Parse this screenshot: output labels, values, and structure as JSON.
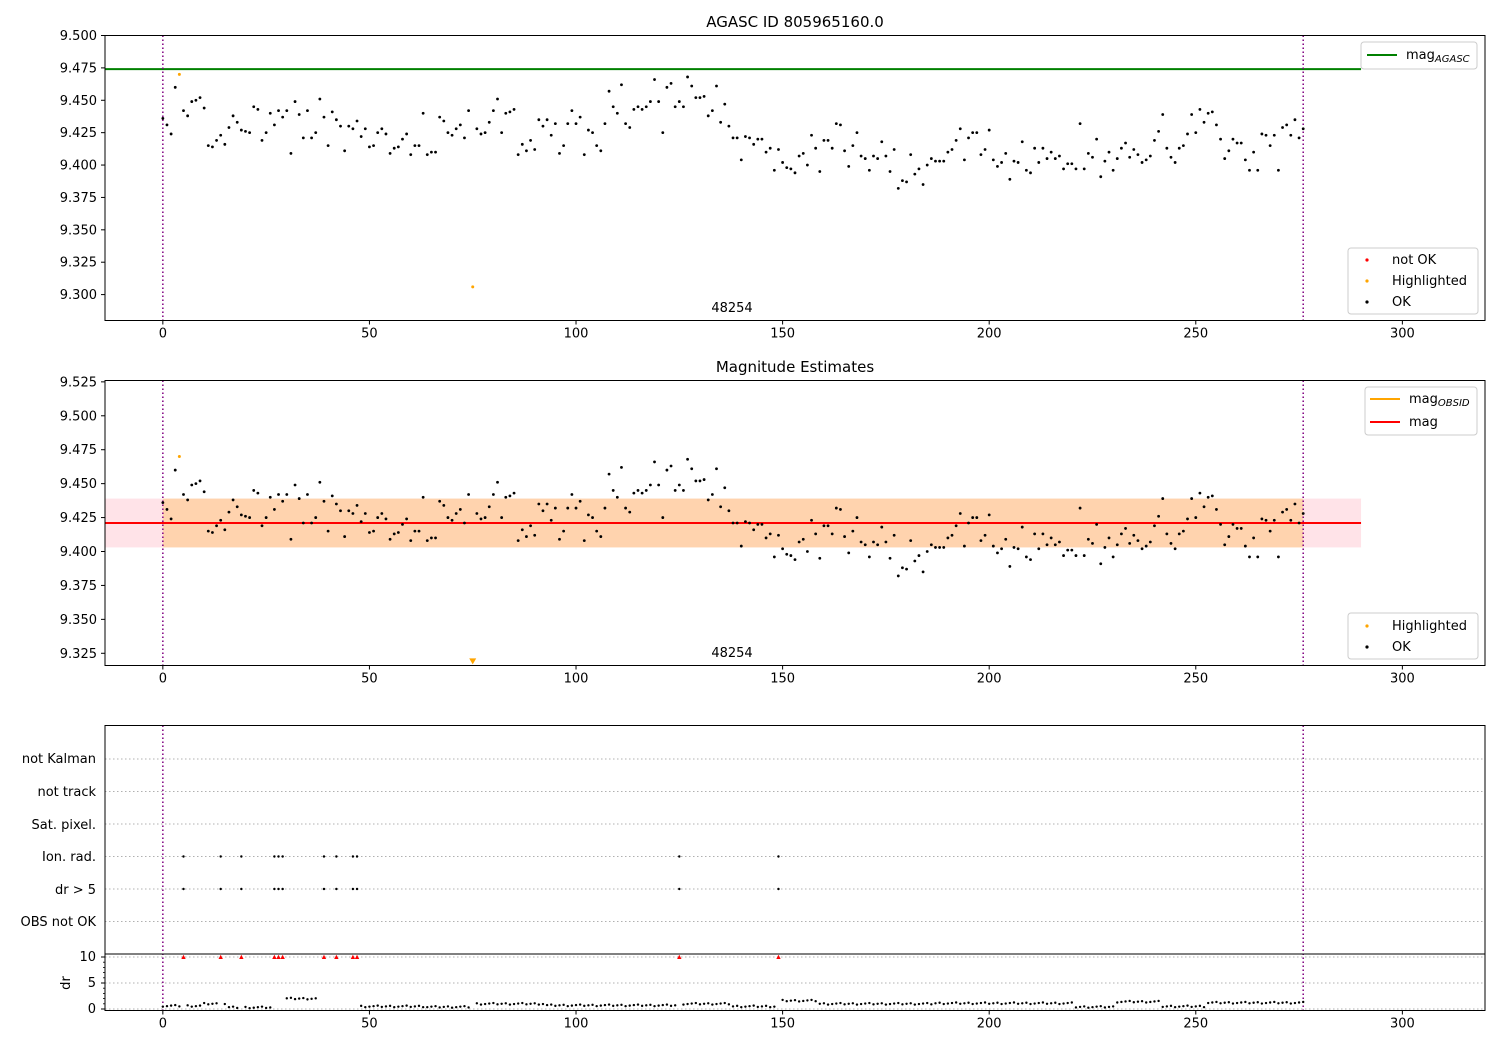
{
  "chart_data": [
    {
      "type": "scatter",
      "title": "AGASC ID 805965160.0",
      "xlim": [
        -14,
        320
      ],
      "ylim": [
        9.28,
        9.5
      ],
      "x_ticks": [
        0,
        50,
        100,
        150,
        200,
        250,
        300
      ],
      "y_ticks": [
        9.3,
        9.325,
        9.35,
        9.375,
        9.4,
        9.425,
        9.45,
        9.475,
        9.5
      ],
      "y_tick_labels": [
        "9.300",
        "9.325",
        "9.350",
        "9.375",
        "9.400",
        "9.425",
        "9.450",
        "9.475",
        "9.500"
      ],
      "grid": false,
      "hlines": [
        {
          "name": "mag",
          "sub": "AGASC",
          "y": 9.474,
          "x_end": 290,
          "color": "#008000"
        }
      ],
      "vlines": [
        0,
        276
      ],
      "obsid_labels": [
        {
          "x": 138,
          "text": "48254"
        }
      ],
      "legend_top": [
        {
          "swatch": "line",
          "color": "#008000",
          "name": "mag",
          "sub": "AGASC"
        }
      ],
      "legend_bottom": [
        {
          "swatch": "dot",
          "color": "#ff0000",
          "name": "not OK"
        },
        {
          "swatch": "dot",
          "color": "#ffa500",
          "name": "Highlighted"
        },
        {
          "swatch": "dot",
          "color": "#000000",
          "name": "OK"
        }
      ],
      "highlighted": [
        {
          "x": 4,
          "y": 9.47
        },
        {
          "x": 75,
          "y": 9.306
        }
      ]
    },
    {
      "type": "scatter",
      "title": "Magnitude Estimates",
      "xlim": [
        -14,
        320
      ],
      "ylim": [
        9.316,
        9.526
      ],
      "x_ticks": [
        0,
        50,
        100,
        150,
        200,
        250,
        300
      ],
      "y_ticks": [
        9.325,
        9.35,
        9.375,
        9.4,
        9.425,
        9.45,
        9.475,
        9.5,
        9.525
      ],
      "y_tick_labels": [
        "9.325",
        "9.350",
        "9.375",
        "9.400",
        "9.425",
        "9.450",
        "9.475",
        "9.500",
        "9.525"
      ],
      "grid": false,
      "band": {
        "x0": -14,
        "x1": 290,
        "y0": 9.403,
        "y1": 9.439
      },
      "band_obsid": {
        "x0": 0,
        "x1": 276,
        "y0": 9.403,
        "y1": 9.439
      },
      "hlines": [
        {
          "name": "mag",
          "y": 9.421,
          "x_end": 290,
          "color": "#ff0000"
        },
        {
          "name": "mag",
          "sub": "OBSID",
          "y": 9.421,
          "x0": 0,
          "x_end": 276,
          "color": "#ffa500"
        }
      ],
      "vlines": [
        0,
        276
      ],
      "obsid_labels": [
        {
          "x": 138,
          "text": "48254"
        }
      ],
      "legend_top": [
        {
          "swatch": "line",
          "color": "#ffa500",
          "name": "mag",
          "sub": "OBSID"
        },
        {
          "swatch": "line",
          "color": "#ff0000",
          "name": "mag"
        }
      ],
      "legend_bottom": [
        {
          "swatch": "dot",
          "color": "#ffa500",
          "name": "Highlighted"
        },
        {
          "swatch": "dot",
          "color": "#000000",
          "name": "OK"
        }
      ],
      "highlighted": [
        {
          "x": 4,
          "y": 9.47
        },
        {
          "x": 75,
          "y": 9.319,
          "marker": "triangle-down"
        }
      ]
    },
    {
      "type": "scatter",
      "title": "",
      "xlim": [
        -14,
        320
      ],
      "x_ticks": [
        0,
        50,
        100,
        150,
        200,
        250,
        300
      ],
      "flag_rows": [
        "not Kalman",
        "not track",
        "Sat. pixel.",
        "Ion. rad.",
        "dr > 5",
        "OBS not OK"
      ],
      "flag_points": {
        "Ion. rad.": [
          5,
          14,
          19,
          27,
          28,
          29,
          39,
          42,
          46,
          47,
          125,
          149
        ],
        "dr > 5": [
          5,
          14,
          19,
          27,
          28,
          29,
          39,
          42,
          46,
          47,
          125,
          149
        ]
      },
      "dr": {
        "ylabel": "dr",
        "ylim": [
          -0.5,
          10.5
        ],
        "y_ticks": [
          0,
          5,
          10
        ],
        "y_tick_labels": [
          "0",
          "5",
          "10"
        ],
        "clipped_at": 10,
        "clipped_x": [
          5,
          14,
          19,
          27,
          28,
          29,
          39,
          42,
          46,
          47,
          125,
          149
        ],
        "segments": [
          {
            "x0": 0,
            "x1": 9,
            "level": 0.6
          },
          {
            "x0": 10,
            "x1": 15,
            "level": 1.0
          },
          {
            "x0": 16,
            "x1": 26,
            "level": 0.3
          },
          {
            "x0": 30,
            "x1": 37,
            "level": 2.0
          },
          {
            "x0": 48,
            "x1": 63,
            "level": 0.5
          },
          {
            "x0": 64,
            "x1": 74,
            "level": 0.4
          },
          {
            "x0": 76,
            "x1": 92,
            "level": 1.0
          },
          {
            "x0": 93,
            "x1": 124,
            "level": 0.7
          },
          {
            "x0": 126,
            "x1": 137,
            "level": 1.0
          },
          {
            "x0": 138,
            "x1": 148,
            "level": 0.5
          },
          {
            "x0": 150,
            "x1": 158,
            "level": 1.6
          },
          {
            "x0": 159,
            "x1": 186,
            "level": 1.0
          },
          {
            "x0": 187,
            "x1": 220,
            "level": 1.1
          },
          {
            "x0": 221,
            "x1": 230,
            "level": 0.4
          },
          {
            "x0": 231,
            "x1": 241,
            "level": 1.4
          },
          {
            "x0": 242,
            "x1": 252,
            "level": 0.5
          },
          {
            "x0": 253,
            "x1": 276,
            "level": 1.2
          }
        ]
      },
      "vlines": [
        0,
        276
      ]
    }
  ],
  "magnitude_series": {
    "x_start": 0,
    "x_step": 1,
    "values": [
      9.436,
      9.431,
      9.424,
      9.46,
      9.47,
      9.442,
      9.438,
      9.449,
      9.45,
      9.452,
      9.444,
      9.415,
      9.414,
      9.419,
      9.423,
      9.416,
      9.429,
      9.438,
      9.433,
      9.427,
      9.426,
      9.425,
      9.445,
      9.443,
      9.419,
      9.425,
      9.44,
      9.431,
      9.442,
      9.437,
      9.442,
      9.409,
      9.449,
      9.439,
      9.421,
      9.442,
      9.421,
      9.425,
      9.451,
      9.437,
      9.415,
      9.441,
      9.435,
      9.43,
      9.411,
      9.43,
      9.428,
      9.434,
      9.422,
      9.428,
      9.414,
      9.415,
      9.425,
      9.428,
      9.424,
      9.409,
      9.413,
      9.414,
      9.42,
      9.424,
      9.408,
      9.415,
      9.415,
      9.44,
      9.408,
      9.41,
      9.41,
      9.437,
      9.434,
      9.425,
      9.423,
      9.428,
      9.431,
      9.421,
      9.442,
      9.306,
      9.428,
      9.424,
      9.425,
      9.433,
      9.442,
      9.451,
      9.425,
      9.44,
      9.441,
      9.443,
      9.408,
      9.416,
      9.411,
      9.419,
      9.412,
      9.435,
      9.43,
      9.435,
      9.423,
      9.432,
      9.409,
      9.415,
      9.432,
      9.442,
      9.432,
      9.437,
      9.408,
      9.427,
      9.425,
      9.415,
      9.411,
      9.432,
      9.457,
      9.445,
      9.44,
      9.462,
      9.432,
      9.429,
      9.443,
      9.445,
      9.443,
      9.445,
      9.449,
      9.466,
      9.449,
      9.425,
      9.46,
      9.463,
      9.445,
      9.449,
      9.445,
      9.468,
      9.461,
      9.452,
      9.452,
      9.453,
      9.438,
      9.442,
      9.461,
      9.433,
      9.447,
      9.43,
      9.421,
      9.421,
      9.404,
      9.422,
      9.421,
      9.416,
      9.42,
      9.42,
      9.41,
      9.413,
      9.396,
      9.412,
      9.402,
      9.398,
      9.397,
      9.394,
      9.407,
      9.409,
      9.4,
      9.423,
      9.413,
      9.395,
      9.419,
      9.419,
      9.413,
      9.432,
      9.431,
      9.411,
      9.399,
      9.415,
      9.425,
      9.407,
      9.405,
      9.396,
      9.407,
      9.405,
      9.418,
      9.407,
      9.395,
      9.412,
      9.382,
      9.388,
      9.387,
      9.408,
      9.393,
      9.397,
      9.385,
      9.4,
      9.405,
      9.403,
      9.403,
      9.403,
      9.41,
      9.412,
      9.419,
      9.428,
      9.404,
      9.421,
      9.425,
      9.425,
      9.408,
      9.412,
      9.427,
      9.404,
      9.399,
      9.402,
      9.409,
      9.389,
      9.403,
      9.402,
      9.418,
      9.396,
      9.394,
      9.413,
      9.402,
      9.413,
      9.405,
      9.41,
      9.405,
      9.407,
      9.397,
      9.401,
      9.401,
      9.397,
      9.432,
      9.397,
      9.409,
      9.406,
      9.42,
      9.391,
      9.403,
      9.41,
      9.396,
      9.405,
      9.413,
      9.417,
      9.406,
      9.412,
      9.408,
      9.402,
      9.404,
      9.407,
      9.419,
      9.426,
      9.439,
      9.413,
      9.406,
      9.402,
      9.413,
      9.415,
      9.424,
      9.439,
      9.425,
      9.443,
      9.433,
      9.44,
      9.441,
      9.431,
      9.42,
      9.405,
      9.411,
      9.42,
      9.417,
      9.417,
      9.404,
      9.396,
      9.41,
      9.396,
      9.424,
      9.423,
      9.415,
      9.423,
      9.396,
      9.429,
      9.431,
      9.423,
      9.435,
      9.421,
      9.428
    ]
  }
}
